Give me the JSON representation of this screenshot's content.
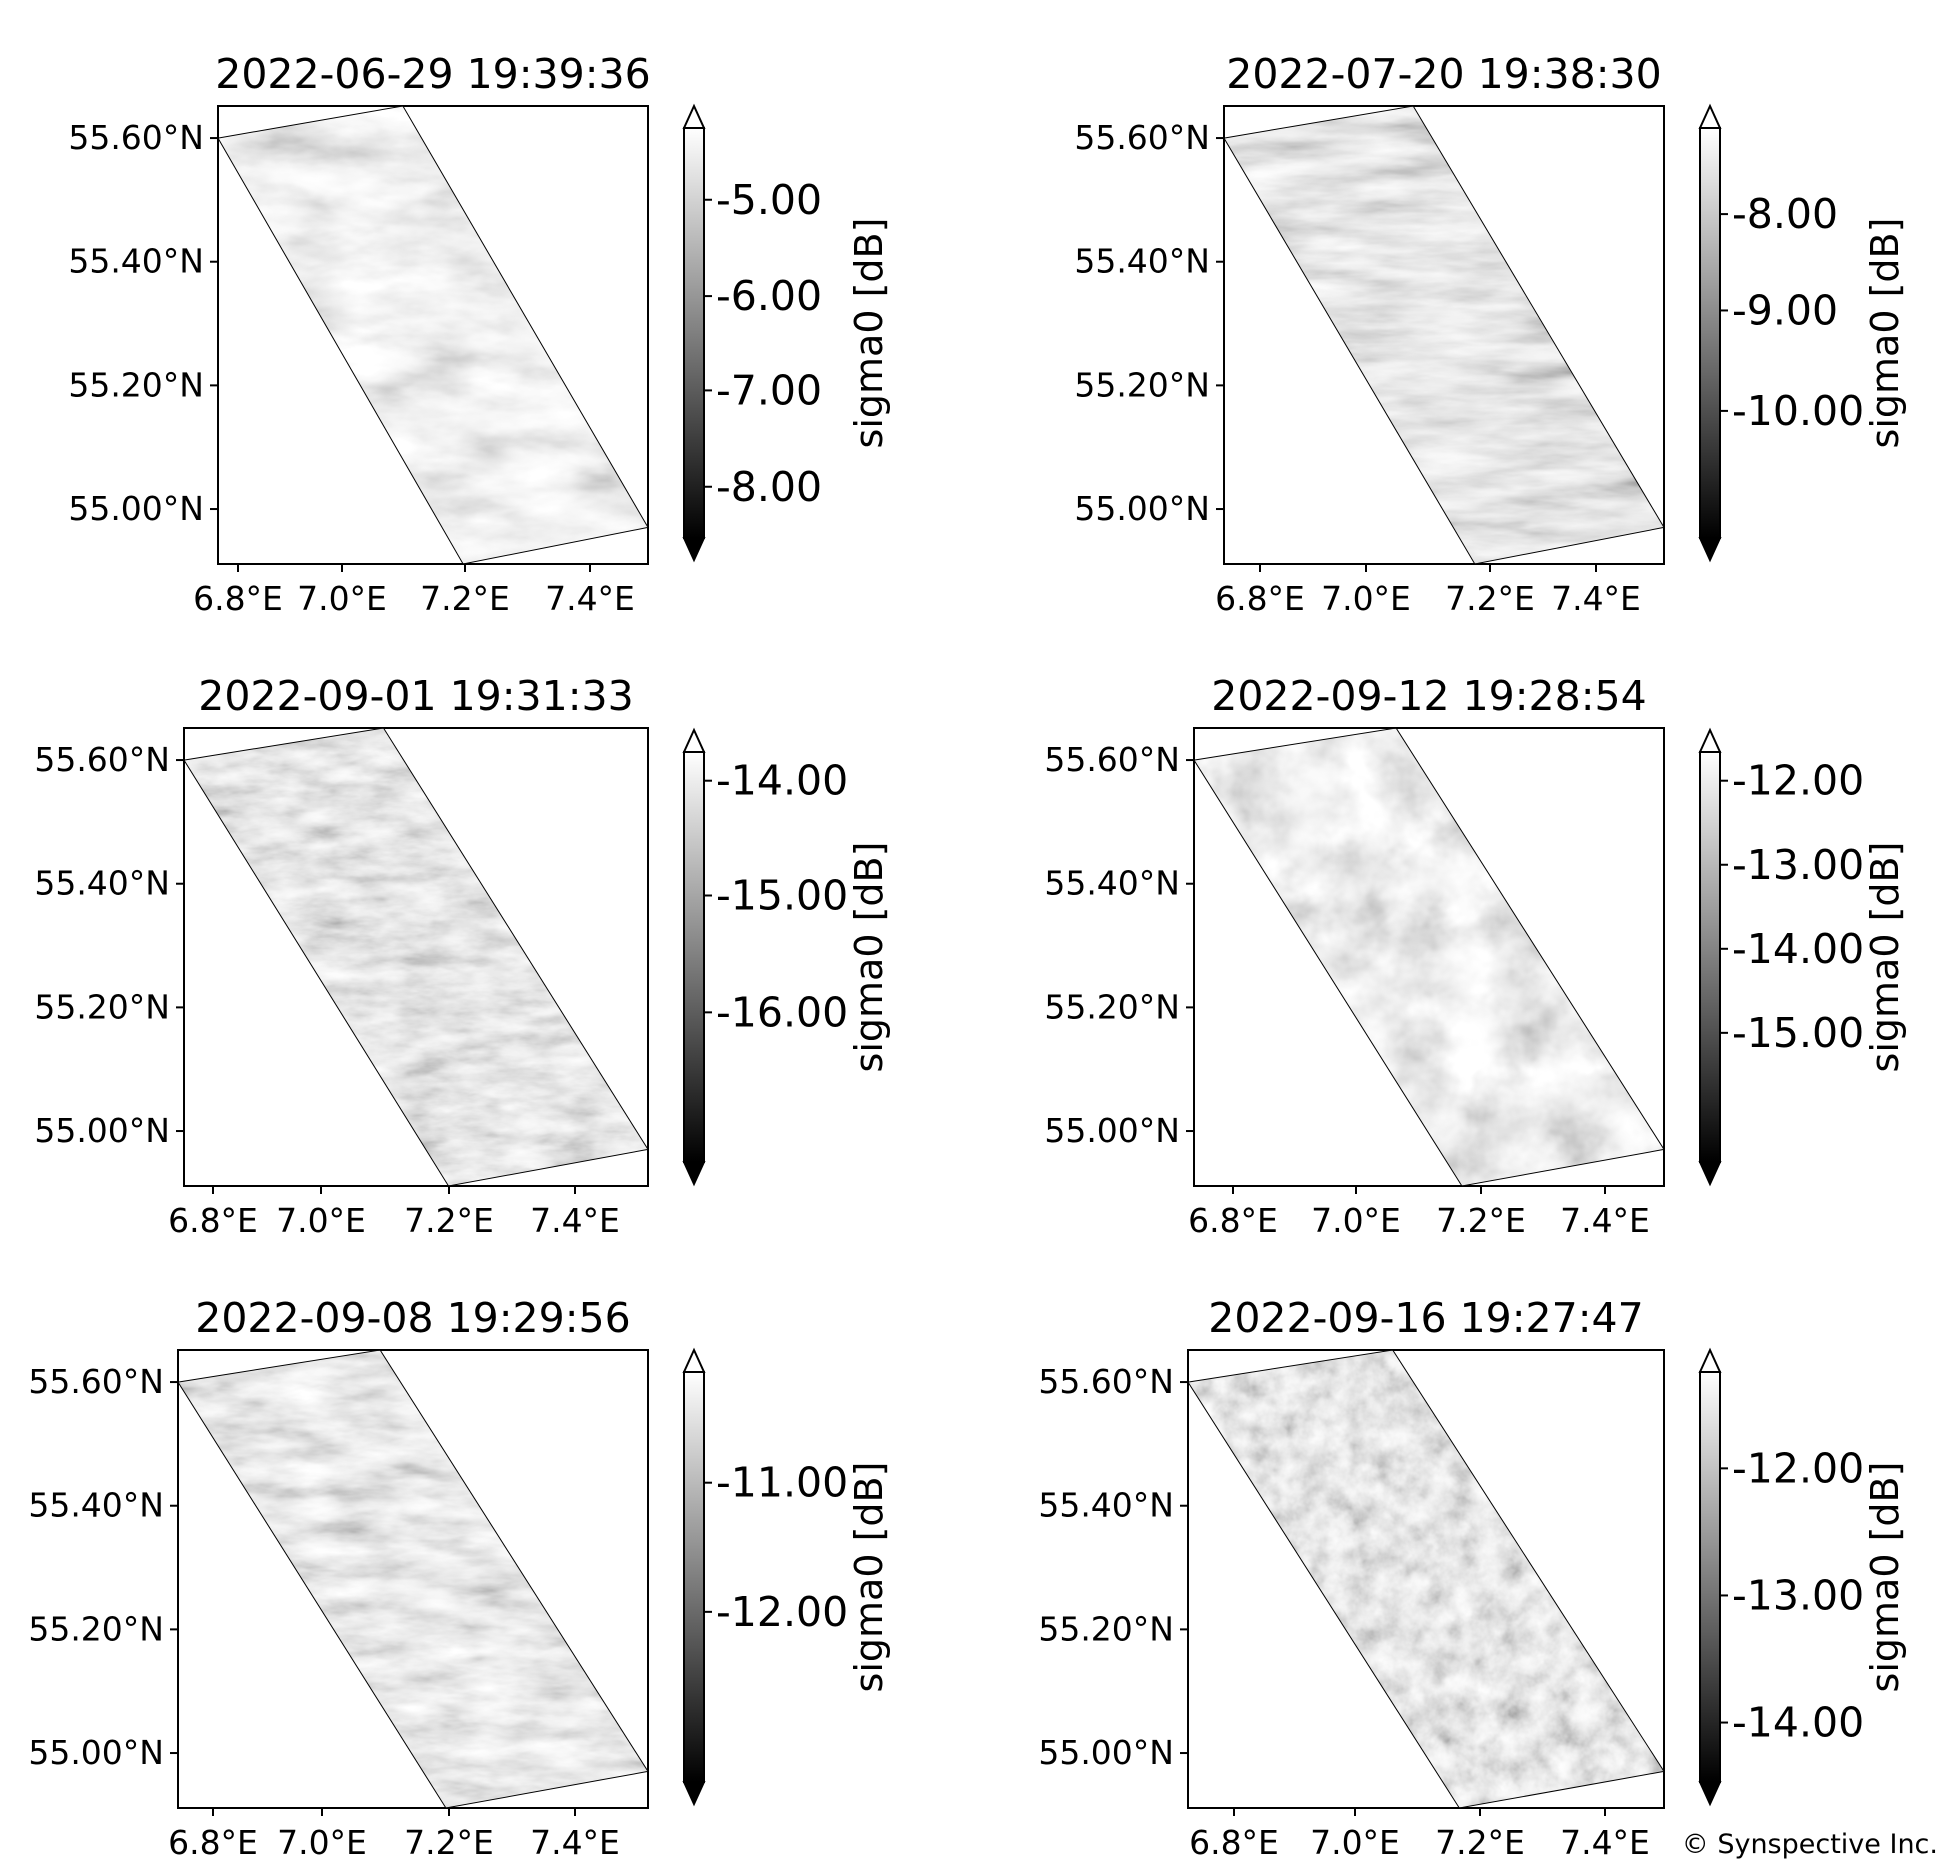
{
  "credit": "© Synspective Inc.",
  "colors": {
    "dark": "#000000",
    "light": "#ffffff",
    "axis": "#000000"
  },
  "panels": [
    {
      "title": "2022-06-29 19:39:36",
      "yticks": [
        "55.60°N",
        "55.40°N",
        "55.20°N",
        "55.00°N"
      ],
      "xticks": [
        "6.8°E",
        "7.0°E",
        "7.2°E",
        "7.4°E"
      ],
      "colorbar": {
        "label": "sigma0 [dB]",
        "ticks": [
          "-5.00",
          "-6.00",
          "-7.00",
          "-8.00"
        ]
      }
    },
    {
      "title": "2022-07-20 19:38:30",
      "yticks": [
        "55.60°N",
        "55.40°N",
        "55.20°N",
        "55.00°N"
      ],
      "xticks": [
        "6.8°E",
        "7.0°E",
        "7.2°E",
        "7.4°E"
      ],
      "colorbar": {
        "label": "sigma0 [dB]",
        "ticks": [
          "-8.00",
          "-9.00",
          "-10.00"
        ]
      }
    },
    {
      "title": "2022-09-01 19:31:33",
      "yticks": [
        "55.60°N",
        "55.40°N",
        "55.20°N",
        "55.00°N"
      ],
      "xticks": [
        "6.8°E",
        "7.0°E",
        "7.2°E",
        "7.4°E"
      ],
      "colorbar": {
        "label": "sigma0 [dB]",
        "ticks": [
          "-14.00",
          "-15.00",
          "-16.00"
        ]
      }
    },
    {
      "title": "2022-09-12 19:28:54",
      "yticks": [
        "55.60°N",
        "55.40°N",
        "55.20°N",
        "55.00°N"
      ],
      "xticks": [
        "6.8°E",
        "7.0°E",
        "7.2°E",
        "7.4°E"
      ],
      "colorbar": {
        "label": "sigma0 [dB]",
        "ticks": [
          "-12.00",
          "-13.00",
          "-14.00",
          "-15.00"
        ]
      }
    },
    {
      "title": "2022-09-08 19:29:56",
      "yticks": [
        "55.60°N",
        "55.40°N",
        "55.20°N",
        "55.00°N"
      ],
      "xticks": [
        "6.8°E",
        "7.0°E",
        "7.2°E",
        "7.4°E"
      ],
      "colorbar": {
        "label": "sigma0 [dB]",
        "ticks": [
          "-11.00",
          "-12.00"
        ]
      }
    },
    {
      "title": "2022-09-16 19:27:47",
      "yticks": [
        "55.60°N",
        "55.40°N",
        "55.20°N",
        "55.00°N"
      ],
      "xticks": [
        "6.8°E",
        "7.0°E",
        "7.2°E",
        "7.4°E"
      ],
      "colorbar": {
        "label": "sigma0 [dB]",
        "ticks": [
          "-12.00",
          "-13.00",
          "-14.00"
        ]
      }
    }
  ]
}
